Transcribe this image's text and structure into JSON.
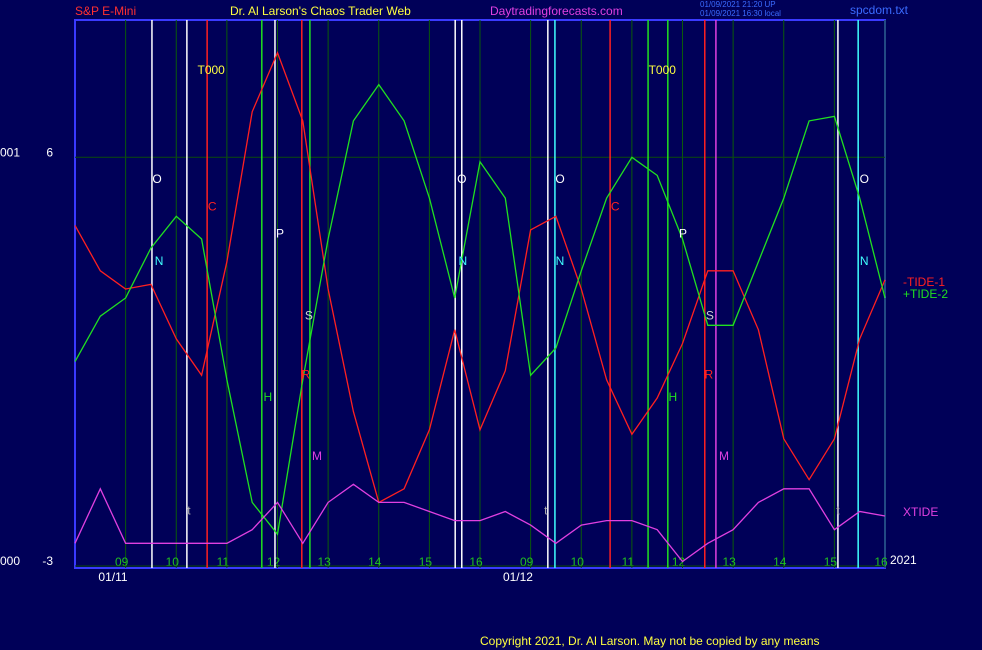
{
  "chart_data": {
    "type": "line",
    "header": {
      "left": "S&P E-Mini",
      "center": "Dr. Al Larson's Chaos Trader Web",
      "site": "Daytradingforecasts.com",
      "stamp1": "01/09/2021 21:20 UP",
      "stamp2": "01/09/2021 16:30 local",
      "file": "spcdom.txt"
    },
    "copyright": "Copyright 2021, Dr. Al Larson. May not be copied by any means",
    "year": "2021",
    "x": [
      0,
      0.5,
      1,
      1.5,
      2,
      2.5,
      3,
      3.5,
      4,
      4.5,
      5,
      5.5,
      6,
      6.5,
      7,
      7.5,
      8,
      8.5,
      9,
      9.5,
      10,
      10.5,
      11,
      11.5,
      12,
      12.5,
      13,
      13.5,
      14,
      14.5,
      15,
      15.5,
      16
    ],
    "xlim": [
      0,
      16
    ],
    "xticks": [
      {
        "value": 1,
        "label": "09"
      },
      {
        "value": 2,
        "label": "10"
      },
      {
        "value": 3,
        "label": "11"
      },
      {
        "value": 4,
        "label": "12"
      },
      {
        "value": 5,
        "label": "13"
      },
      {
        "value": 6,
        "label": "14"
      },
      {
        "value": 7,
        "label": "15"
      },
      {
        "value": 8,
        "label": "16"
      },
      {
        "value": 9,
        "label": "09"
      },
      {
        "value": 10,
        "label": "10"
      },
      {
        "value": 11,
        "label": "11"
      },
      {
        "value": 12,
        "label": "12"
      },
      {
        "value": 13,
        "label": "13"
      },
      {
        "value": 14,
        "label": "14"
      },
      {
        "value": 15,
        "label": "15"
      },
      {
        "value": 16,
        "label": "16"
      }
    ],
    "x_dates": [
      {
        "value": 0.75,
        "label": "01/11"
      },
      {
        "value": 8.75,
        "label": "01/12"
      }
    ],
    "ylim": [
      -3,
      9
    ],
    "yticks": [
      -3,
      6
    ],
    "ytick_prefix": [
      "000",
      "001"
    ],
    "series": [
      {
        "name": "-TIDE-1",
        "color": "#ff2020",
        "values": [
          4.5,
          3.5,
          3.1,
          3.2,
          2.0,
          1.2,
          3.7,
          7.0,
          8.3,
          6.8,
          3.1,
          0.4,
          -1.6,
          -1.3,
          0.0,
          2.2,
          0.0,
          1.3,
          4.4,
          4.7,
          3.1,
          1.1,
          -0.1,
          0.7,
          1.9,
          3.5,
          3.5,
          2.2,
          -0.2,
          -1.1,
          -0.2,
          2.0,
          3.3
        ]
      },
      {
        "name": "+TIDE-2",
        "color": "#20e020",
        "values": [
          1.5,
          2.5,
          2.9,
          4.0,
          4.7,
          4.2,
          1.1,
          -1.6,
          -2.3,
          1.1,
          4.2,
          6.8,
          7.6,
          6.8,
          5.1,
          2.9,
          5.9,
          5.1,
          1.2,
          1.8,
          3.5,
          5.1,
          6.0,
          5.6,
          4.2,
          2.3,
          2.3,
          3.7,
          5.1,
          6.8,
          6.9,
          5.1,
          2.9
        ]
      },
      {
        "name": "XTIDE",
        "color": "#e040e0",
        "values": [
          -2.5,
          -1.3,
          -2.5,
          -2.5,
          -2.5,
          -2.5,
          -2.5,
          -2.2,
          -1.6,
          -2.5,
          -1.6,
          -1.2,
          -1.6,
          -1.6,
          -1.8,
          -2.0,
          -2.0,
          -1.8,
          -2.1,
          -2.5,
          -2.1,
          -2.0,
          -2.0,
          -2.2,
          -2.9,
          -2.5,
          -2.2,
          -1.6,
          -1.3,
          -1.3,
          -2.2,
          -1.8,
          -1.9
        ]
      }
    ],
    "vlines": [
      {
        "x": 1.52,
        "color": "#ffffff"
      },
      {
        "x": 2.21,
        "color": "#ffffff"
      },
      {
        "x": 2.61,
        "color": "#ff2020"
      },
      {
        "x": 3.69,
        "color": "#20e020"
      },
      {
        "x": 3.95,
        "color": "#ffffff"
      },
      {
        "x": 4.48,
        "color": "#ff2020"
      },
      {
        "x": 4.64,
        "color": "#20e020"
      },
      {
        "x": 7.51,
        "color": "#ffffff"
      },
      {
        "x": 7.64,
        "color": "#ffffff"
      },
      {
        "x": 9.34,
        "color": "#ffffff"
      },
      {
        "x": 9.48,
        "color": "#40ffff"
      },
      {
        "x": 10.57,
        "color": "#ff2020"
      },
      {
        "x": 11.32,
        "color": "#20e020"
      },
      {
        "x": 11.71,
        "color": "#20e020"
      },
      {
        "x": 12.44,
        "color": "#ff2020"
      },
      {
        "x": 12.66,
        "color": "#e040e0"
      },
      {
        "x": 15.07,
        "color": "#ffffff"
      },
      {
        "x": 15.47,
        "color": "#40ffff"
      }
    ],
    "annotations": [
      {
        "text": "O",
        "x": 1.62,
        "y": 5.5,
        "color": "#ffffff"
      },
      {
        "text": "N",
        "x": 1.66,
        "y": 3.7,
        "color": "#40ffff"
      },
      {
        "text": "t",
        "x": 2.25,
        "y": -1.8,
        "color": "#b0b0b0"
      },
      {
        "text": "C",
        "x": 2.71,
        "y": 4.9,
        "color": "#ff2020"
      },
      {
        "text": "P",
        "x": 4.05,
        "y": 4.3,
        "color": "#ffffff"
      },
      {
        "text": "H",
        "x": 3.81,
        "y": 0.7,
        "color": "#20e020"
      },
      {
        "text": "S",
        "x": 4.62,
        "y": 2.5,
        "color": "#d0d0d0"
      },
      {
        "text": "R",
        "x": 4.56,
        "y": 1.2,
        "color": "#ff2020"
      },
      {
        "text": "M",
        "x": 4.78,
        "y": -0.6,
        "color": "#e040e0"
      },
      {
        "text": "O",
        "x": 7.64,
        "y": 5.5,
        "color": "#ffffff"
      },
      {
        "text": "N",
        "x": 7.66,
        "y": 3.7,
        "color": "#40ffff"
      },
      {
        "text": "O",
        "x": 9.58,
        "y": 5.5,
        "color": "#ffffff"
      },
      {
        "text": "N",
        "x": 9.58,
        "y": 3.7,
        "color": "#40ffff"
      },
      {
        "text": "t",
        "x": 9.3,
        "y": -1.8,
        "color": "#b0b0b0"
      },
      {
        "text": "C",
        "x": 10.67,
        "y": 4.9,
        "color": "#ff2020"
      },
      {
        "text": "P",
        "x": 12.01,
        "y": 4.3,
        "color": "#ffffff"
      },
      {
        "text": "H",
        "x": 11.81,
        "y": 0.7,
        "color": "#20e020"
      },
      {
        "text": "S",
        "x": 12.54,
        "y": 2.5,
        "color": "#d0d0d0"
      },
      {
        "text": "R",
        "x": 12.52,
        "y": 1.2,
        "color": "#ff2020"
      },
      {
        "text": "M",
        "x": 12.82,
        "y": -0.6,
        "color": "#e040e0"
      },
      {
        "text": "O",
        "x": 15.59,
        "y": 5.5,
        "color": "#ffffff"
      },
      {
        "text": "N",
        "x": 15.59,
        "y": 3.7,
        "color": "#40ffff"
      },
      {
        "text": "t",
        "x": 15.07,
        "y": -1.8,
        "color": "#b0b0b0"
      },
      {
        "text": "T000",
        "x": 2.69,
        "y": 7.9,
        "color": "#ffff40"
      },
      {
        "text": "T000",
        "x": 11.6,
        "y": 7.9,
        "color": "#ffff40"
      }
    ]
  }
}
